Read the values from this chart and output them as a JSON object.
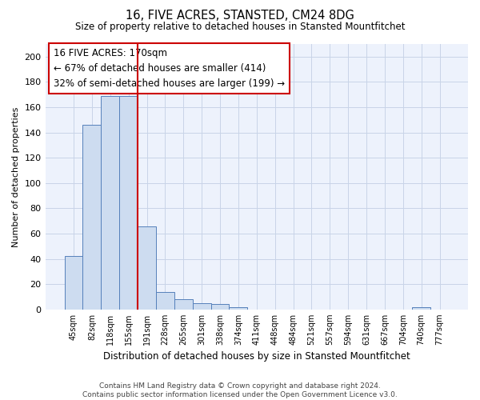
{
  "title": "16, FIVE ACRES, STANSTED, CM24 8DG",
  "subtitle": "Size of property relative to detached houses in Stansted Mountfitchet",
  "xlabel": "Distribution of detached houses by size in Stansted Mountfitchet",
  "ylabel": "Number of detached properties",
  "bar_labels": [
    "45sqm",
    "82sqm",
    "118sqm",
    "155sqm",
    "191sqm",
    "228sqm",
    "265sqm",
    "301sqm",
    "338sqm",
    "374sqm",
    "411sqm",
    "448sqm",
    "484sqm",
    "521sqm",
    "557sqm",
    "594sqm",
    "631sqm",
    "667sqm",
    "704sqm",
    "740sqm",
    "777sqm"
  ],
  "bar_values": [
    42,
    146,
    169,
    169,
    66,
    14,
    8,
    5,
    4,
    2,
    0,
    0,
    0,
    0,
    0,
    0,
    0,
    0,
    0,
    2,
    0
  ],
  "bar_color": "#cddcf0",
  "bar_edge_color": "#5580bb",
  "annotation_text": "16 FIVE ACRES: 170sqm\n← 67% of detached houses are smaller (414)\n32% of semi-detached houses are larger (199) →",
  "vline_color": "#cc0000",
  "annotation_box_color": "#ffffff",
  "annotation_box_edge_color": "#cc0000",
  "ylim": [
    0,
    210
  ],
  "yticks": [
    0,
    20,
    40,
    60,
    80,
    100,
    120,
    140,
    160,
    180,
    200
  ],
  "footer": "Contains HM Land Registry data © Crown copyright and database right 2024.\nContains public sector information licensed under the Open Government Licence v3.0.",
  "bg_color": "#edf2fc",
  "grid_color": "#c8d4e8",
  "vline_x": 3.5
}
